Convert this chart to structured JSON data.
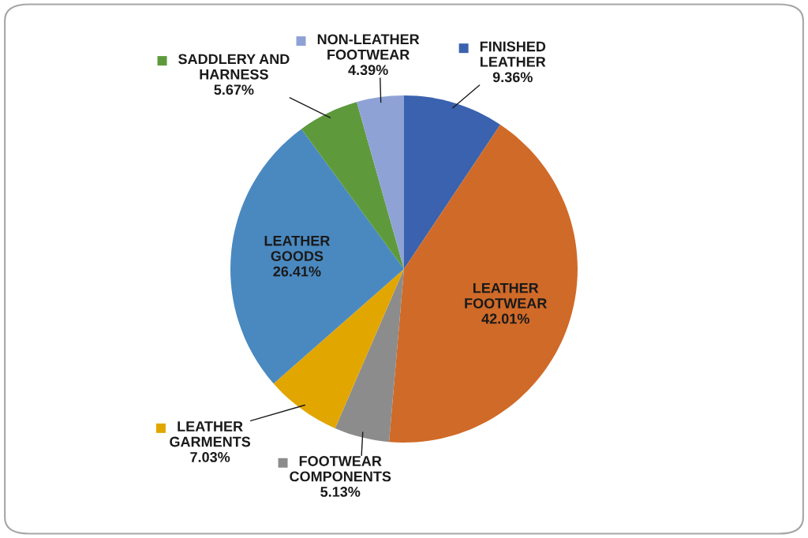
{
  "chart_data": {
    "type": "pie",
    "categories": [
      "FINISHED\nLEATHER",
      "LEATHER\nFOOTWEAR",
      "FOOTWEAR\nCOMPONENTS",
      "LEATHER\nGARMENTS",
      "LEATHER\nGOODS",
      "SADDLERY AND\nHARNESS",
      "NON-LEATHER\nFOOTWEAR"
    ],
    "values": [
      9.36,
      42.01,
      5.13,
      7.03,
      26.41,
      5.67,
      4.39
    ],
    "colors": [
      "#3a62ae",
      "#d06a28",
      "#8c8c8c",
      "#e2a600",
      "#4a89c0",
      "#5e9a3c",
      "#8fa2d6"
    ],
    "value_labels": [
      "9.36%",
      "42.01%",
      "5.13%",
      "7.03%",
      "26.41%",
      "5.67%",
      "4.39%"
    ],
    "legend": "left"
  }
}
